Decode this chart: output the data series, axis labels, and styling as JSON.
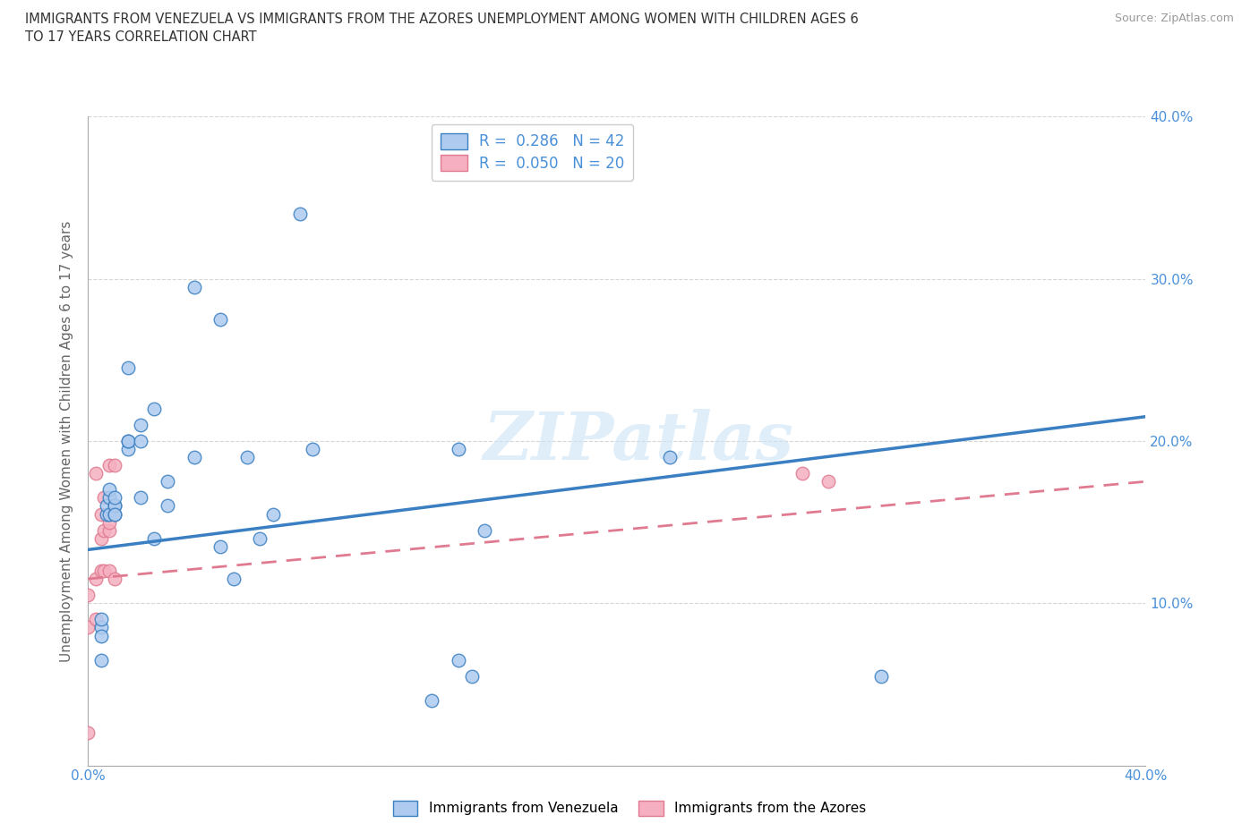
{
  "title_line1": "IMMIGRANTS FROM VENEZUELA VS IMMIGRANTS FROM THE AZORES UNEMPLOYMENT AMONG WOMEN WITH CHILDREN AGES 6",
  "title_line2": "TO 17 YEARS CORRELATION CHART",
  "source": "Source: ZipAtlas.com",
  "ylabel": "Unemployment Among Women with Children Ages 6 to 17 years",
  "xlim": [
    0.0,
    0.4
  ],
  "ylim": [
    0.0,
    0.4
  ],
  "xticks": [
    0.0,
    0.1,
    0.2,
    0.3,
    0.4
  ],
  "yticks": [
    0.0,
    0.1,
    0.2,
    0.3,
    0.4
  ],
  "xtick_labels": [
    "0.0%",
    "",
    "",
    "",
    "40.0%"
  ],
  "ytick_labels_right": [
    "",
    "10.0%",
    "20.0%",
    "30.0%",
    "40.0%"
  ],
  "watermark": "ZIPatlas",
  "legend_r1": "R =  0.286   N = 42",
  "legend_r2": "R =  0.050   N = 20",
  "color_venezuela": "#aecbef",
  "color_azores": "#f5afc0",
  "line_color_venezuela": "#3a7fc1",
  "line_color_azores": "#e07a90",
  "venezuela_line_x": [
    0.0,
    0.4
  ],
  "venezuela_line_y": [
    0.133,
    0.215
  ],
  "azores_line_x": [
    0.0,
    0.4
  ],
  "azores_line_y": [
    0.115,
    0.175
  ],
  "venezuela_x": [
    0.005,
    0.005,
    0.005,
    0.005,
    0.007,
    0.007,
    0.008,
    0.008,
    0.008,
    0.01,
    0.01,
    0.01,
    0.01,
    0.01,
    0.015,
    0.015,
    0.015,
    0.015,
    0.02,
    0.02,
    0.02,
    0.025,
    0.025,
    0.03,
    0.03,
    0.04,
    0.04,
    0.05,
    0.05,
    0.055,
    0.06,
    0.065,
    0.07,
    0.08,
    0.085,
    0.13,
    0.14,
    0.14,
    0.145,
    0.15,
    0.22,
    0.3
  ],
  "venezuela_y": [
    0.085,
    0.09,
    0.08,
    0.065,
    0.155,
    0.16,
    0.155,
    0.165,
    0.17,
    0.16,
    0.155,
    0.16,
    0.165,
    0.155,
    0.195,
    0.2,
    0.2,
    0.245,
    0.21,
    0.2,
    0.165,
    0.14,
    0.22,
    0.175,
    0.16,
    0.19,
    0.295,
    0.275,
    0.135,
    0.115,
    0.19,
    0.14,
    0.155,
    0.34,
    0.195,
    0.04,
    0.065,
    0.195,
    0.055,
    0.145,
    0.19,
    0.055
  ],
  "azores_x": [
    0.0,
    0.0,
    0.0,
    0.003,
    0.003,
    0.003,
    0.005,
    0.005,
    0.005,
    0.006,
    0.006,
    0.006,
    0.008,
    0.008,
    0.008,
    0.008,
    0.01,
    0.01,
    0.27,
    0.28
  ],
  "azores_y": [
    0.02,
    0.085,
    0.105,
    0.09,
    0.115,
    0.18,
    0.12,
    0.14,
    0.155,
    0.12,
    0.145,
    0.165,
    0.12,
    0.145,
    0.15,
    0.185,
    0.115,
    0.185,
    0.18,
    0.175
  ],
  "background_color": "#ffffff",
  "grid_color": "#cccccc",
  "tick_color": "#4a90d9"
}
